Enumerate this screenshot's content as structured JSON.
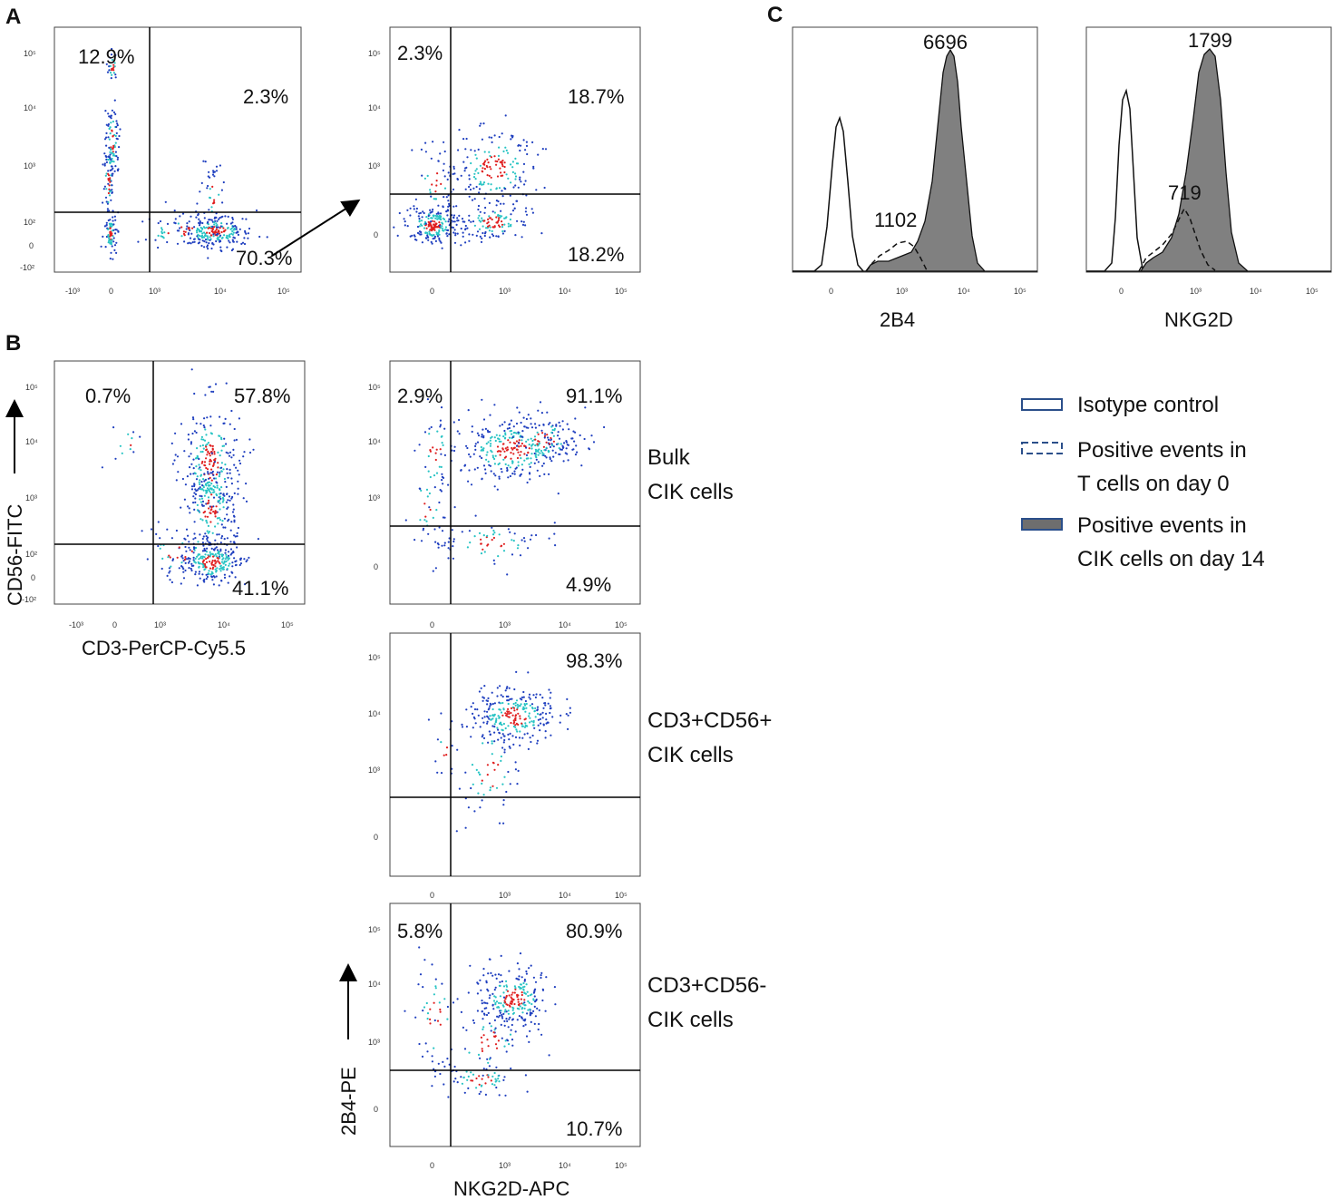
{
  "panel_labels": {
    "a": "A",
    "b": "B",
    "c": "C"
  },
  "axis_ticks": [
    "-10³",
    "0",
    "10³",
    "10⁴",
    "10⁵"
  ],
  "y_ticks": [
    "10⁵",
    "10⁴",
    "10³",
    "10²",
    "0",
    "-10²"
  ],
  "y_ticks_short": [
    "10⁵",
    "10⁴",
    "10³",
    "0"
  ],
  "labels": {
    "cd56_fitc": "CD56-FITC",
    "cd3_percp": "CD3-PerCP-Cy5.5",
    "b4_pe": "2B4-PE",
    "nkg2d_apc": "NKG2D-APC",
    "hist_2b4": "2B4",
    "hist_nkg2d": "NKG2D"
  },
  "row_labels": {
    "bulk_1": "Bulk",
    "bulk_2": "CIK cells",
    "pos_1": "CD3+CD56+",
    "pos_2": "CIK cells",
    "neg_1": "CD3+CD56-",
    "neg_2": "CIK cells"
  },
  "legend": {
    "isotype": "Isotype control",
    "day0_1": "Positive events in",
    "day0_2": "T cells on day 0",
    "day14_1": "Positive events in",
    "day14_2": "CIK cells on day 14"
  },
  "colors": {
    "fill": "#808080",
    "density_low": "#1f3fbf",
    "density_mid": "#28c4c4",
    "density_high": "#e02020",
    "legend_edge": "#2b4f8a"
  },
  "chart_data": [
    {
      "type": "scatter",
      "panel": "A",
      "id": "a1",
      "xlabel": "",
      "ylabel": "",
      "quadrants": {
        "ul": "12.9%",
        "ur": "2.3%",
        "lr": "70.3%"
      }
    },
    {
      "type": "scatter",
      "panel": "A",
      "id": "a2",
      "xlabel": "",
      "ylabel": "",
      "quadrants": {
        "ul": "2.3%",
        "ur": "18.7%",
        "lr": "18.2%"
      }
    },
    {
      "type": "scatter",
      "panel": "B",
      "id": "b1",
      "xlabel": "CD3-PerCP-Cy5.5",
      "ylabel": "CD56-FITC",
      "quadrants": {
        "ul": "0.7%",
        "ur": "57.8%",
        "lr": "41.1%"
      }
    },
    {
      "type": "scatter",
      "panel": "B",
      "id": "b2",
      "row": "Bulk CIK cells",
      "xlabel": "",
      "ylabel": "",
      "quadrants": {
        "ul": "2.9%",
        "ur": "91.1%",
        "lr": "4.9%"
      }
    },
    {
      "type": "scatter",
      "panel": "B",
      "id": "b3",
      "row": "CD3+CD56+ CIK cells",
      "xlabel": "",
      "ylabel": "",
      "quadrants": {
        "ur": "98.3%"
      }
    },
    {
      "type": "scatter",
      "panel": "B",
      "id": "b4",
      "row": "CD3+CD56- CIK cells",
      "xlabel": "NKG2D-APC",
      "ylabel": "2B4-PE",
      "quadrants": {
        "ul": "5.8%",
        "ur": "80.9%",
        "lr": "10.7%"
      }
    },
    {
      "type": "area",
      "panel": "C",
      "id": "c1",
      "xlabel": "2B4",
      "mfi": {
        "day14": "6696",
        "day0": "1102"
      }
    },
    {
      "type": "area",
      "panel": "C",
      "id": "c2",
      "xlabel": "NKG2D",
      "mfi": {
        "day14": "1799",
        "day0": "719"
      }
    }
  ]
}
